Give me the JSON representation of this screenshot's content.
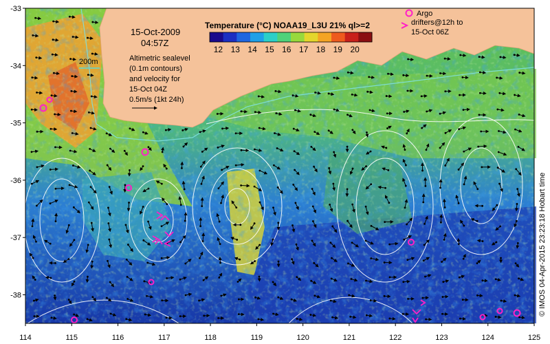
{
  "map": {
    "date": "15-Oct-2009",
    "time": "04:57Z",
    "colorbar_title": "Temperature (°C) NOAA19_L3U 21% ql>=2",
    "colorbar_ticks": [
      "12",
      "13",
      "14",
      "15",
      "16",
      "17",
      "18",
      "19",
      "20"
    ],
    "colorbar_range": [
      11.5,
      21
    ],
    "isobath_label": "200m",
    "sealevel_lines": [
      "Altimetric sealevel",
      "(0.1m contours)",
      "and velocity for",
      "15-Oct 04Z"
    ],
    "velocity_scale_label": "0.5m/s (1kt 24h)",
    "argo_label": "Argo",
    "drifters_lines": [
      "drifters@12h to",
      "15-Oct 06Z"
    ],
    "credit": "© IMOS 04-Apr-2015 23:23:18 Hobart time",
    "lon_ticks": [
      "114",
      "115",
      "116",
      "117",
      "118",
      "119",
      "120",
      "121",
      "122",
      "123",
      "124",
      "125"
    ],
    "lat_ticks": [
      "-33",
      "-34",
      "-35",
      "-36",
      "-37",
      "-38"
    ],
    "colors": {
      "land": "#f5c29a",
      "contour": "#ffffff",
      "argo": "#ff1fc8",
      "drifter": "#ff1fc8",
      "frame": "#000000"
    }
  }
}
